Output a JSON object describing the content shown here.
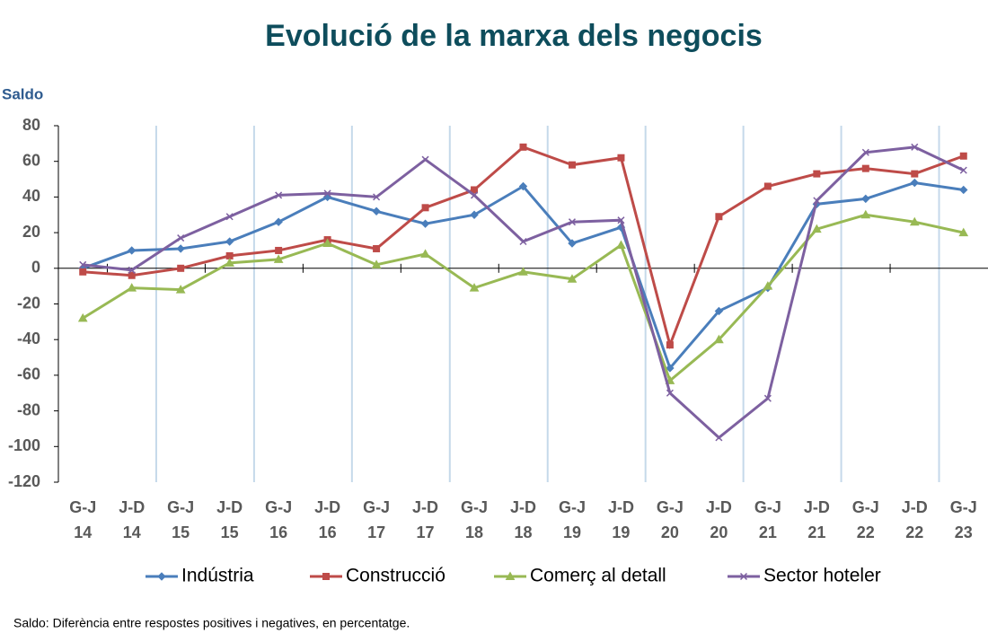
{
  "chart_data": {
    "type": "line",
    "title": "Evolució de la marxa dels negocis",
    "y_label": "Saldo",
    "note": "Saldo: Diferència entre respostes positives i negatives, en percentatge.",
    "categories": [
      "G-J 14",
      "J-D 14",
      "G-J 15",
      "J-D 15",
      "G-J 16",
      "J-D 16",
      "G-J 17",
      "J-D 17",
      "G-J 18",
      "J-D 18",
      "G-J 19",
      "J-D 19",
      "G-J 20",
      "J-D 20",
      "G-J 21",
      "J-D 21",
      "G-J 22",
      "J-D 22",
      "G-J 23"
    ],
    "series": [
      {
        "name": "Indústria",
        "color": "#4a7ebb",
        "marker": "diamond",
        "values": [
          0,
          10,
          11,
          15,
          26,
          40,
          32,
          25,
          30,
          46,
          14,
          23,
          -56,
          -24,
          -11,
          36,
          39,
          48,
          44
        ]
      },
      {
        "name": "Construcció",
        "color": "#be4b48",
        "marker": "square",
        "values": [
          -2,
          -4,
          0,
          7,
          10,
          16,
          11,
          34,
          44,
          68,
          58,
          62,
          -43,
          29,
          46,
          53,
          56,
          53,
          63
        ]
      },
      {
        "name": "Comerç al detall",
        "color": "#98b954",
        "marker": "triangle",
        "values": [
          -28,
          -11,
          -12,
          3,
          5,
          14,
          2,
          8,
          -11,
          -2,
          -6,
          13,
          -63,
          -40,
          -10,
          22,
          30,
          26,
          20
        ]
      },
      {
        "name": "Sector hoteler",
        "color": "#7d60a0",
        "marker": "cross",
        "values": [
          2,
          -1,
          17,
          29,
          41,
          42,
          40,
          61,
          41,
          15,
          26,
          27,
          -70,
          -95,
          -73,
          38,
          65,
          68,
          55
        ]
      }
    ],
    "ylim": [
      -120,
      80
    ],
    "yticks": [
      -120,
      -100,
      -80,
      -60,
      -40,
      -20,
      0,
      20,
      40,
      60,
      80
    ]
  }
}
